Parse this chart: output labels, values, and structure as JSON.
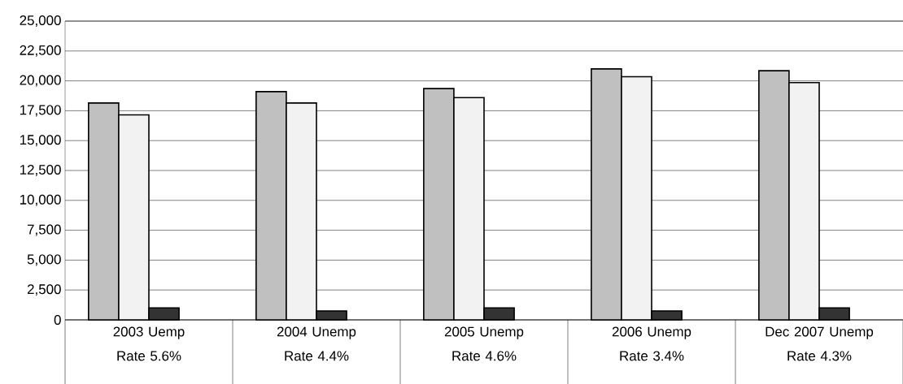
{
  "chart_data": {
    "type": "bar",
    "categories": [
      "2003 Uemp Rate 5.6%",
      "2004 Unemp Rate 4.4%",
      "2005 Unemp Rate 4.6%",
      "2006 Unemp Rate 3.4%",
      "Dec 2007 Unemp Rate 4.3%"
    ],
    "series": [
      {
        "color": "#c0c0c0",
        "values": [
          18150,
          19100,
          19350,
          21000,
          20850
        ]
      },
      {
        "color": "#f2f2f2",
        "values": [
          17150,
          18150,
          18600,
          20350,
          19850
        ]
      },
      {
        "color": "#333333",
        "values": [
          1000,
          750,
          1000,
          750,
          1000
        ]
      }
    ],
    "ylim": [
      0,
      25000
    ],
    "yticks": [
      {
        "value": 0,
        "label": "0"
      },
      {
        "value": 2500,
        "label": "2,500"
      },
      {
        "value": 5000,
        "label": "5,000"
      },
      {
        "value": 7500,
        "label": "7,500"
      },
      {
        "value": 10000,
        "label": "10,000"
      },
      {
        "value": 12500,
        "label": "12,500"
      },
      {
        "value": 15000,
        "label": "15,000"
      },
      {
        "value": 17500,
        "label": "17,500"
      },
      {
        "value": 20000,
        "label": "20,000"
      },
      {
        "value": 22500,
        "label": "22,500"
      },
      {
        "value": 25000,
        "label": "25,000"
      }
    ],
    "grid": "y"
  }
}
